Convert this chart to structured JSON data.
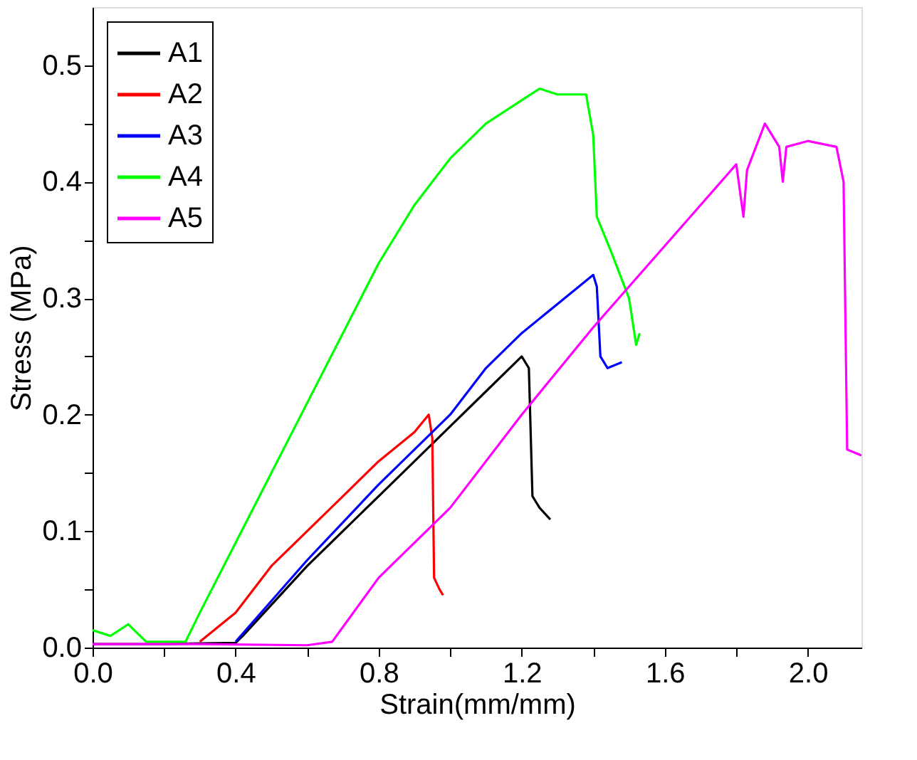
{
  "chart_data": {
    "type": "line",
    "xlabel": "Strain(mm/mm)",
    "ylabel": "Stress (MPa)",
    "xlim": [
      0,
      2.15
    ],
    "ylim": [
      0,
      0.55
    ],
    "xticks": [
      {
        "value": 0,
        "label": "0.0"
      },
      {
        "value": 0.2,
        "label": null
      },
      {
        "value": 0.4,
        "label": "0.4"
      },
      {
        "value": 0.6,
        "label": null
      },
      {
        "value": 0.8,
        "label": "0.8"
      },
      {
        "value": 1,
        "label": null
      },
      {
        "value": 1.2,
        "label": "1.2"
      },
      {
        "value": 1.4,
        "label": null
      },
      {
        "value": 1.6,
        "label": "1.6"
      },
      {
        "value": 1.8,
        "label": null
      },
      {
        "value": 2,
        "label": "2.0"
      }
    ],
    "yticks": [
      {
        "value": 0,
        "label": "0.0"
      },
      {
        "value": 0.05,
        "label": null
      },
      {
        "value": 0.1,
        "label": "0.1"
      },
      {
        "value": 0.15,
        "label": null
      },
      {
        "value": 0.2,
        "label": "0.2"
      },
      {
        "value": 0.25,
        "label": null
      },
      {
        "value": 0.3,
        "label": "0.3"
      },
      {
        "value": 0.35,
        "label": null
      },
      {
        "value": 0.4,
        "label": "0.4"
      },
      {
        "value": 0.45,
        "label": null
      },
      {
        "value": 0.5,
        "label": "0.5"
      }
    ],
    "grid": false,
    "legend": "top left",
    "line_style": "solid",
    "marker": "none",
    "series": [
      {
        "name": "A1",
        "color": "#000000",
        "x": [
          0,
          0.2,
          0.4,
          0.42,
          0.6,
          0.8,
          1.0,
          1.1,
          1.2,
          1.22,
          1.23,
          1.25,
          1.28
        ],
        "values": [
          0.003,
          0.003,
          0.004,
          0.01,
          0.07,
          0.13,
          0.19,
          0.22,
          0.25,
          0.24,
          0.13,
          0.12,
          0.11
        ]
      },
      {
        "name": "A2",
        "color": "#ff0000",
        "x": [
          0.3,
          0.4,
          0.5,
          0.6,
          0.7,
          0.8,
          0.9,
          0.94,
          0.95,
          0.955,
          0.97,
          0.98
        ],
        "values": [
          0.005,
          0.03,
          0.07,
          0.1,
          0.13,
          0.16,
          0.185,
          0.2,
          0.18,
          0.06,
          0.05,
          0.045
        ]
      },
      {
        "name": "A3",
        "color": "#0000ff",
        "x": [
          0.4,
          0.5,
          0.6,
          0.8,
          1.0,
          1.1,
          1.2,
          1.3,
          1.4,
          1.41,
          1.42,
          1.44,
          1.48
        ],
        "values": [
          0.005,
          0.04,
          0.075,
          0.14,
          0.2,
          0.24,
          0.27,
          0.295,
          0.32,
          0.31,
          0.25,
          0.24,
          0.245
        ]
      },
      {
        "name": "A4",
        "color": "#00ff00",
        "x": [
          0,
          0.05,
          0.1,
          0.15,
          0.26,
          0.3,
          0.4,
          0.5,
          0.6,
          0.7,
          0.8,
          0.9,
          1.0,
          1.1,
          1.2,
          1.25,
          1.3,
          1.38,
          1.4,
          1.41,
          1.45,
          1.5,
          1.52,
          1.53
        ],
        "values": [
          0.015,
          0.01,
          0.02,
          0.005,
          0.005,
          0.03,
          0.09,
          0.15,
          0.21,
          0.27,
          0.33,
          0.38,
          0.42,
          0.45,
          0.47,
          0.48,
          0.475,
          0.475,
          0.44,
          0.37,
          0.34,
          0.3,
          0.26,
          0.27
        ]
      },
      {
        "name": "A5",
        "color": "#ff00ff",
        "x": [
          0,
          0.3,
          0.6,
          0.67,
          0.8,
          1.0,
          1.2,
          1.4,
          1.5,
          1.6,
          1.7,
          1.8,
          1.82,
          1.83,
          1.88,
          1.92,
          1.93,
          1.94,
          2.0,
          2.08,
          2.1,
          2.11,
          2.15
        ],
        "values": [
          0.003,
          0.003,
          0.002,
          0.005,
          0.06,
          0.12,
          0.2,
          0.275,
          0.31,
          0.345,
          0.38,
          0.415,
          0.37,
          0.41,
          0.45,
          0.43,
          0.4,
          0.43,
          0.435,
          0.43,
          0.4,
          0.17,
          0.165
        ]
      }
    ]
  }
}
